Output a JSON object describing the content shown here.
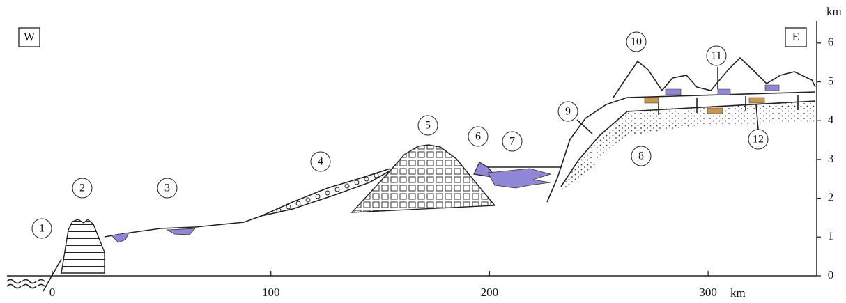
{
  "header": {
    "west": "W",
    "east": "E"
  },
  "labels": [
    "1",
    "2",
    "3",
    "4",
    "5",
    "6",
    "7",
    "8",
    "9",
    "10",
    "11",
    "12"
  ],
  "x_axis": {
    "unit": "km",
    "ticks": [
      0,
      100,
      200,
      300
    ]
  },
  "y_axis": {
    "unit": "km",
    "ticks": [
      0,
      1,
      2,
      3,
      4,
      5,
      6
    ]
  }
}
